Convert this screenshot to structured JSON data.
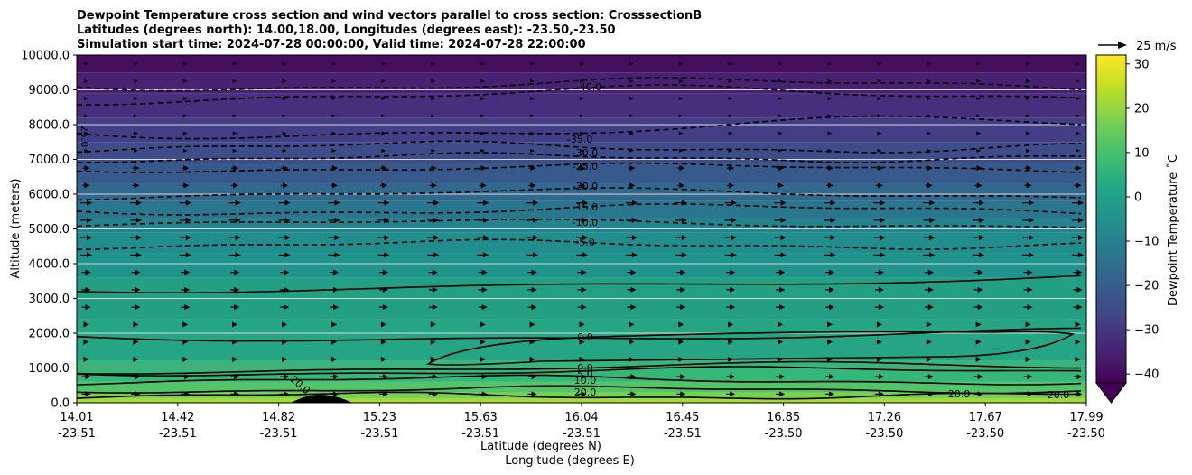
{
  "chart_data": {
    "type": "contour",
    "title_lines": [
      "Dewpoint Temperature cross section and wind vectors parallel to cross section: CrosssectionB",
      "Latitudes (degrees north): 14.00,18.00, Longitudes (degrees east): -23.50,-23.50",
      "Simulation start time: 2024-07-28 00:00:00, Valid time: 2024-07-28 22:00:00"
    ],
    "ylabel": "Altitude (meters)",
    "xlabel_lat": "Latitude (degrees N)",
    "xlabel_lon": "Longitude (degrees E)",
    "ylim": [
      0,
      10000
    ],
    "yticks": [
      "0.0",
      "1000.0",
      "2000.0",
      "3000.0",
      "4000.0",
      "5000.0",
      "6000.0",
      "7000.0",
      "8000.0",
      "9000.0",
      "10000.0"
    ],
    "xticks_lat": [
      "14.01",
      "14.42",
      "14.82",
      "15.23",
      "15.63",
      "16.04",
      "16.45",
      "16.85",
      "17.26",
      "17.67",
      "17.99"
    ],
    "xticks_lon": [
      "-23.51",
      "-23.51",
      "-23.51",
      "-23.51",
      "-23.51",
      "-23.51",
      "-23.51",
      "-23.50",
      "-23.50",
      "-23.50",
      "-23.50"
    ],
    "horizontal_grid": true,
    "colorbar": {
      "label": "Dewpoint Temperature ˚C",
      "ticks": [
        "30",
        "20",
        "10",
        "0",
        "−10",
        "−20",
        "−30",
        "−40"
      ],
      "range": [
        -42,
        32
      ],
      "extend": "min",
      "colormap": "viridis"
    },
    "quiver_key": "25 m/s",
    "contour_labels": [
      "-40.0",
      "-35.0",
      "-30.0",
      "-25.0",
      "-20.0",
      "-15.0",
      "-10.0",
      "-5.0",
      "0.0",
      "0.0",
      "5.0",
      "10.0",
      "20.0",
      "20.0",
      "20.0",
      "20.0",
      "25.0"
    ],
    "contour_levels_dashed": [
      -40,
      -35,
      -30,
      -25,
      -20,
      -15,
      -10,
      -5
    ],
    "contour_levels_solid": [
      0,
      5,
      10,
      15,
      20,
      25
    ]
  }
}
